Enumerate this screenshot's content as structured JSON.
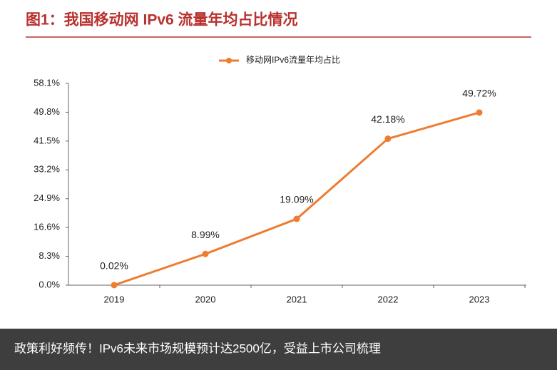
{
  "chart_data": {
    "type": "line",
    "title": "图1：我国移动网 IPv6 流量年均占比情况",
    "categories": [
      "2019",
      "2020",
      "2021",
      "2022",
      "2023"
    ],
    "series": [
      {
        "name": "移动网IPv6流量年均占比",
        "color": "#ed7d31",
        "values": [
          0.02,
          8.99,
          19.09,
          42.18,
          49.72
        ],
        "value_labels": [
          "0.02%",
          "8.99%",
          "19.09%",
          "42.18%",
          "49.72%"
        ]
      }
    ],
    "ylim": [
      0,
      58.1
    ],
    "yticks": [
      {
        "value": 0,
        "label": "0.0%"
      },
      {
        "value": 8.3,
        "label": "8.3%"
      },
      {
        "value": 16.6,
        "label": "16.6%"
      },
      {
        "value": 24.9,
        "label": "24.9%"
      },
      {
        "value": 33.2,
        "label": "33.2%"
      },
      {
        "value": 41.5,
        "label": "41.5%"
      },
      {
        "value": 49.8,
        "label": "49.8%"
      },
      {
        "value": 58.1,
        "label": "58.1%"
      }
    ],
    "legend": "top",
    "banner": "政策利好频传！IPv6未来市场规模预计达2500亿，受益上市公司梳理"
  }
}
